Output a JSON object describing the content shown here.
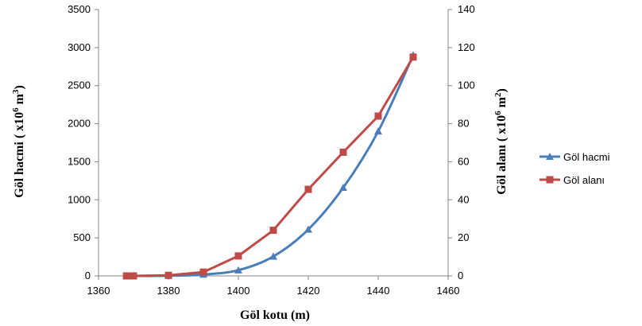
{
  "chart_data": {
    "type": "line",
    "xlabel": "Göl kotu (m)",
    "ylabel_left": {
      "main": "Göl hacmi ( x10",
      "sup1": "6",
      "mid": " m",
      "sup2": "3",
      "end": ")"
    },
    "ylabel_right": {
      "main": "Göl alanı ( x10",
      "sup1": "6",
      "mid": " m",
      "sup2": "2",
      "end": ")"
    },
    "xlim": [
      1360,
      1460
    ],
    "ylim_left": [
      0,
      3500
    ],
    "ylim_right": [
      0,
      140
    ],
    "x_ticks": [
      1360,
      1380,
      1400,
      1420,
      1440,
      1460
    ],
    "y_left_ticks": [
      0,
      500,
      1000,
      1500,
      2000,
      2500,
      3000,
      3500
    ],
    "y_right_ticks": [
      0,
      20,
      40,
      60,
      80,
      100,
      120,
      140
    ],
    "grid": false,
    "legend_position": "right",
    "series": [
      {
        "name": "Göl hacmi",
        "axis": "left",
        "color": "#4A7EBB",
        "marker": "triangle",
        "x": [
          1368,
          1370,
          1380,
          1390,
          1400,
          1410,
          1420,
          1430,
          1440,
          1450
        ],
        "y": [
          0,
          0,
          2,
          18,
          75,
          255,
          610,
          1160,
          1900,
          2900
        ]
      },
      {
        "name": "Göl alanı",
        "axis": "right",
        "color": "#BE4B48",
        "marker": "square",
        "x": [
          1368,
          1370,
          1380,
          1390,
          1400,
          1410,
          1420,
          1430,
          1440,
          1450
        ],
        "y": [
          0,
          0,
          0.3,
          2,
          10.5,
          24,
          45.5,
          65,
          84,
          115
        ]
      }
    ]
  }
}
